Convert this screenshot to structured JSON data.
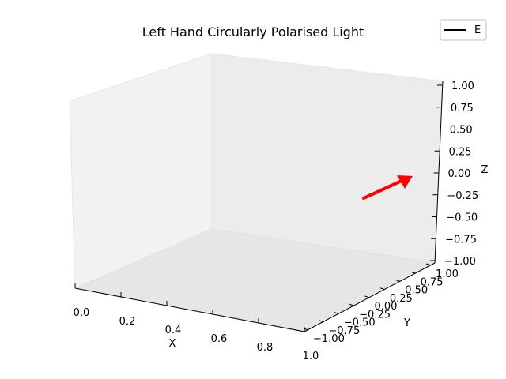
{
  "chart_data": {
    "type": "line",
    "projection": "3d",
    "title": "Left Hand Circularly Polarised Light",
    "xlabel": "X",
    "ylabel": "Y",
    "zlabel": "Z",
    "xlim": [
      0.0,
      1.0
    ],
    "ylim": [
      -1.0,
      1.0
    ],
    "zlim": [
      -1.0,
      1.0
    ],
    "xticks": [
      "0.0",
      "0.2",
      "0.4",
      "0.6",
      "0.8",
      "1.0"
    ],
    "yticks": [
      "−1.00",
      "−0.75",
      "−0.50",
      "−0.25",
      "0.00",
      "0.25",
      "0.50",
      "0.75",
      "1.00"
    ],
    "zticks": [
      "−1.00",
      "−0.75",
      "−0.50",
      "−0.25",
      "0.00",
      "0.25",
      "0.50",
      "0.75",
      "1.00"
    ],
    "grid": false,
    "legend": {
      "placement": "top-right",
      "entries": [
        {
          "name": "E",
          "color": "#000000"
        }
      ]
    },
    "series": [
      {
        "name": "E",
        "color": "#000000",
        "x": [],
        "y": [],
        "z": []
      }
    ],
    "vector": {
      "color": "#ff0000",
      "label": "E field arrow"
    }
  }
}
